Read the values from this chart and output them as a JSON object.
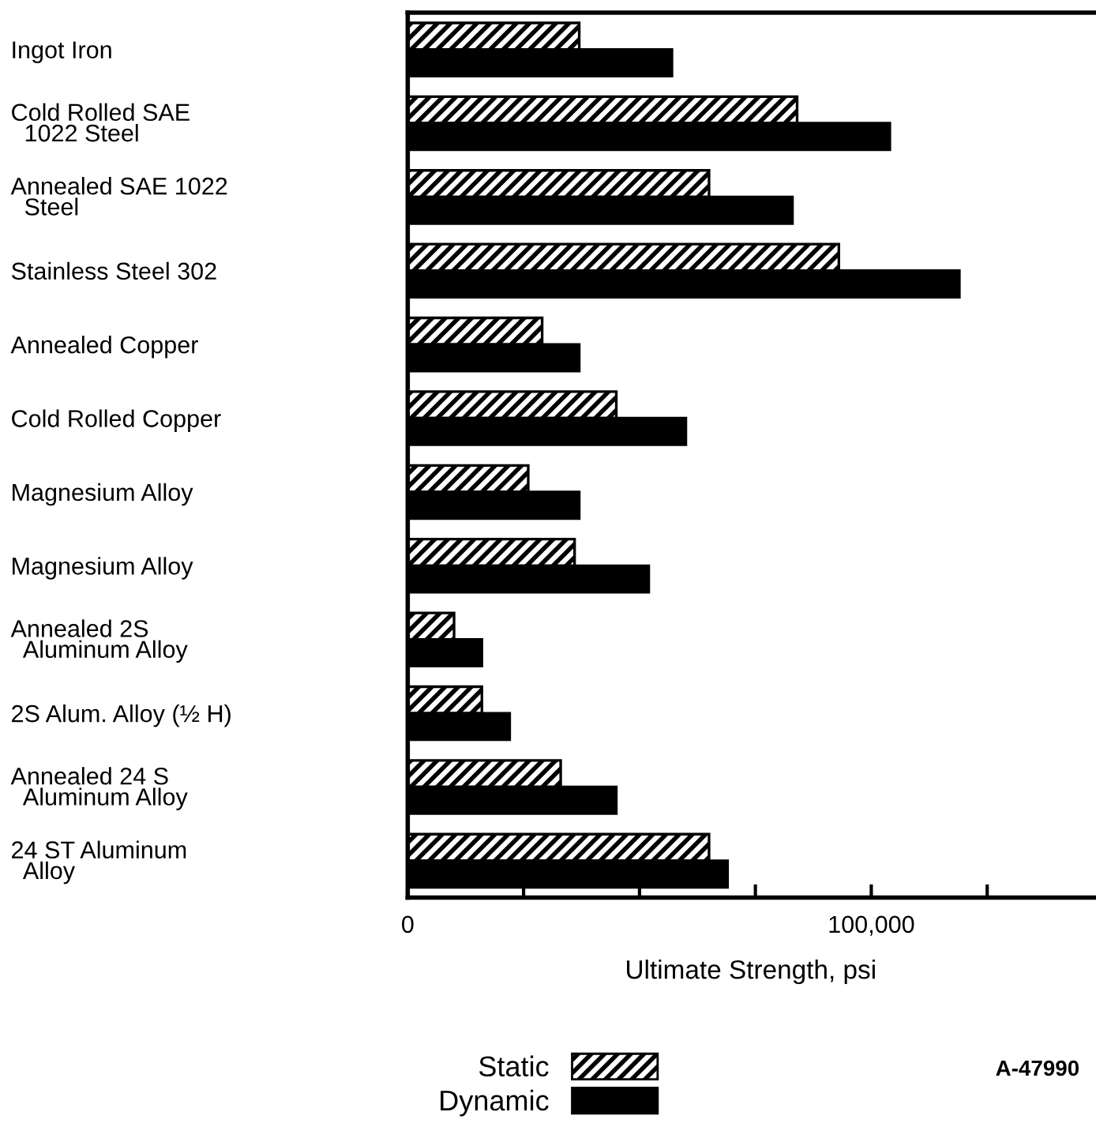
{
  "chart_data": {
    "type": "bar",
    "orientation": "horizontal",
    "xlabel": "Ultimate Strength, psi",
    "categories": [
      "Ingot Iron",
      "Cold Rolled SAE\n  1022 Steel",
      "Annealed SAE 1022\n  Steel",
      "Stainless Steel 302",
      "Annealed Copper",
      "Cold Rolled Copper",
      "Magnesium Alloy",
      "Magnesium Alloy",
      "Annealed 2S\n  Aluminum Alloy",
      "2S Alum. Alloy (½ H)",
      "Annealed 24 S\n  Aluminum Alloy",
      "24 ST Aluminum\n  Alloy"
    ],
    "series": [
      {
        "name": "Static",
        "color": "#000000",
        "values": [
          37000,
          84000,
          65000,
          93000,
          29000,
          45000,
          26000,
          36000,
          10000,
          16000,
          33000,
          65000
        ]
      },
      {
        "name": "Dynamic",
        "color": "#000000",
        "values": [
          57000,
          104000,
          83000,
          119000,
          37000,
          60000,
          37000,
          52000,
          16000,
          22000,
          45000,
          69000
        ]
      }
    ],
    "xlim": [
      0,
      148000
    ],
    "xticks": [
      0,
      {
        "value": 25000,
        "label": null
      },
      {
        "value": 50000,
        "label": null
      },
      {
        "value": 75000,
        "label": null
      },
      {
        "value": 100000,
        "label": "100,000"
      },
      {
        "value": 125000,
        "label": null
      }
    ],
    "legend": "bottom",
    "grid": false,
    "annotations": [
      "A-47990"
    ]
  }
}
